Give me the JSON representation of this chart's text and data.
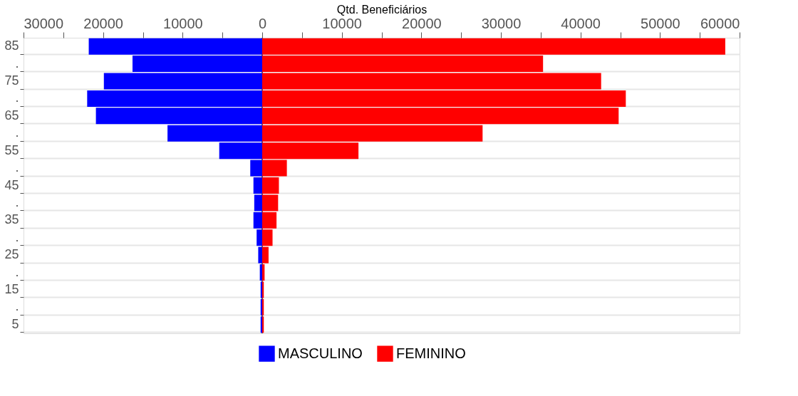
{
  "chart_data": {
    "type": "bar",
    "orientation": "horizontal",
    "xlabel": "Qtd. Beneficiários",
    "categories": [
      "85",
      ".",
      "75",
      ".",
      "65",
      ".",
      "55",
      ".",
      "45",
      ".",
      "35",
      ".",
      "25",
      ".",
      "15",
      ".",
      "5"
    ],
    "series": [
      {
        "name": "MASCULINO",
        "color": "#0000ff",
        "values": [
          -21800,
          -16300,
          -19900,
          -22000,
          -20900,
          -11900,
          -5400,
          -1500,
          -1100,
          -1000,
          -1100,
          -700,
          -500,
          -300,
          -200,
          -200,
          -200
        ]
      },
      {
        "name": "FEMININO",
        "color": "#ff0000",
        "values": [
          58200,
          35300,
          42600,
          45700,
          44800,
          27700,
          12100,
          3100,
          2100,
          2000,
          1800,
          1300,
          800,
          300,
          200,
          200,
          200
        ]
      }
    ],
    "xlim": [
      -30000,
      60000
    ],
    "xticks": [
      {
        "value": -30000,
        "label": "30000"
      },
      {
        "value": -25000,
        "label": null
      },
      {
        "value": -20000,
        "label": "20000"
      },
      {
        "value": -15000,
        "label": null
      },
      {
        "value": -10000,
        "label": "10000"
      },
      {
        "value": -5000,
        "label": null
      },
      0,
      {
        "value": 5000,
        "label": null
      },
      10000,
      {
        "value": 15000,
        "label": null
      },
      20000,
      {
        "value": 25000,
        "label": null
      },
      30000,
      {
        "value": 35000,
        "label": null
      },
      40000,
      {
        "value": 45000,
        "label": null
      },
      50000,
      {
        "value": 55000,
        "label": null
      },
      60000
    ],
    "ref_lines": [
      {
        "axis": "x",
        "value": 0,
        "color": "#666666"
      }
    ],
    "grid": "y",
    "legend": "bottom",
    "stacked": true
  }
}
